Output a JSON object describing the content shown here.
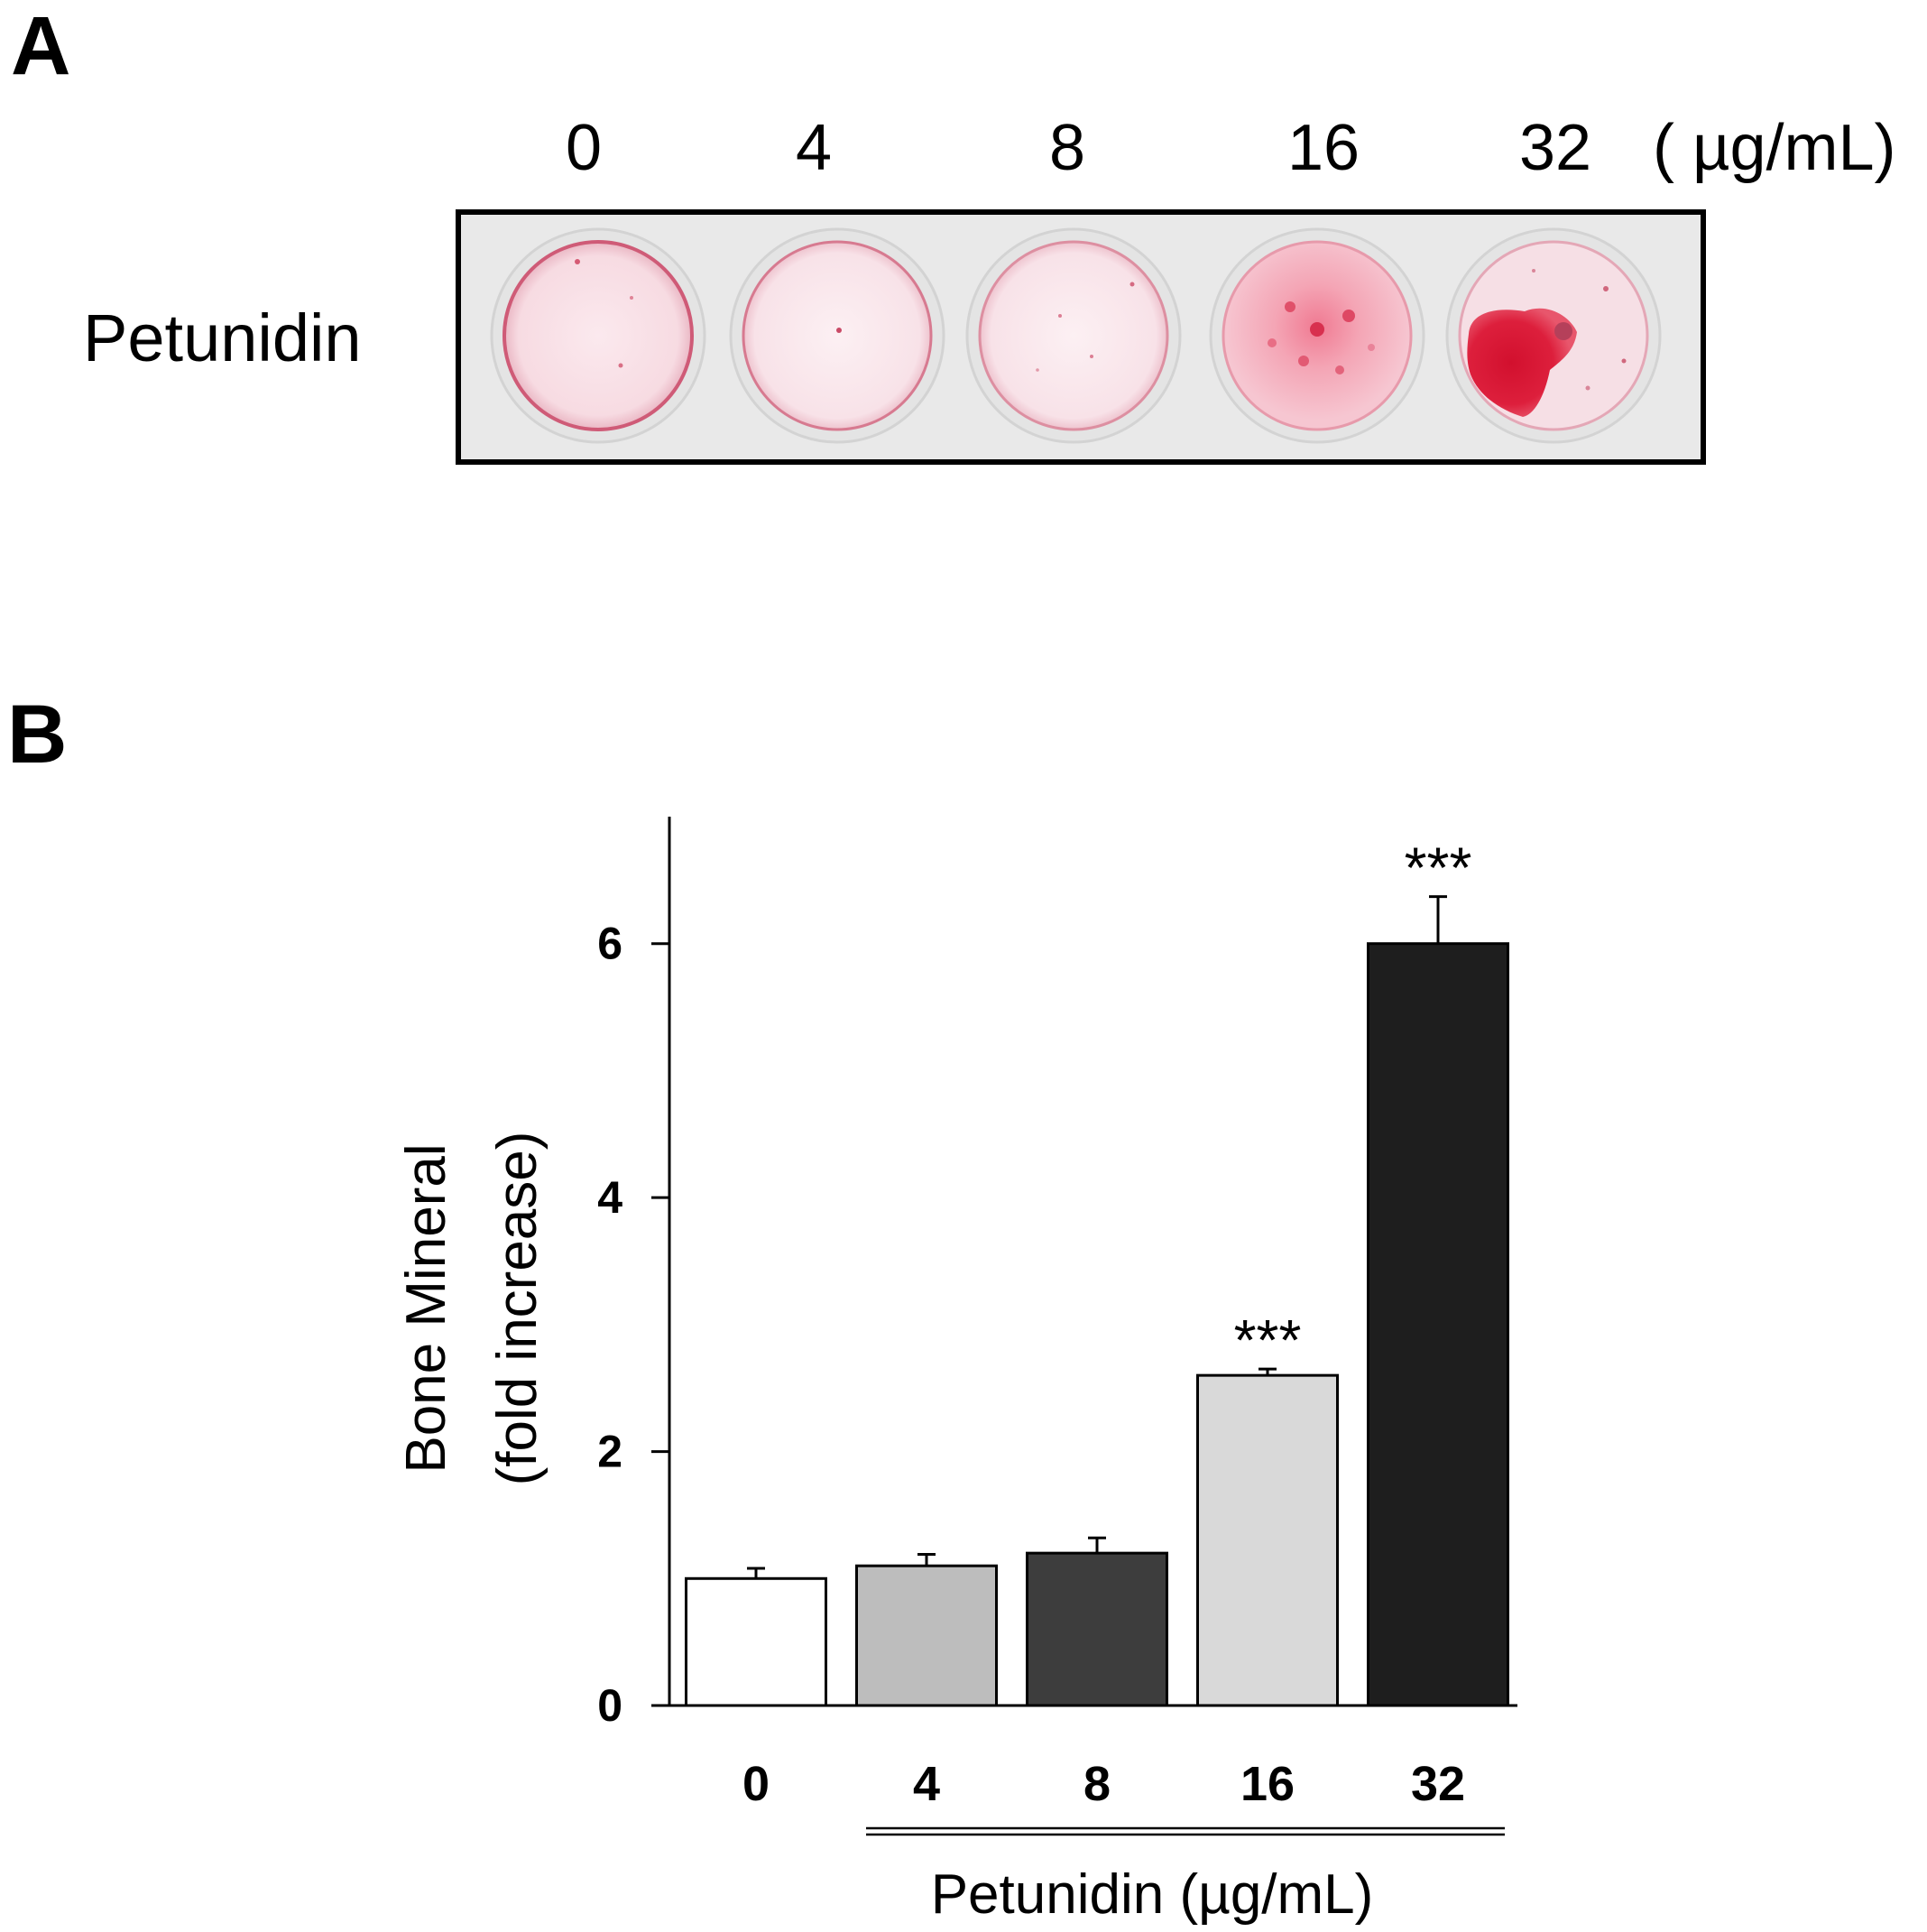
{
  "panel_a": {
    "letter": "A",
    "row_label": "Petunidin",
    "unit_label": "( µg/mL)",
    "wells": [
      {
        "concentration": "0",
        "stain": "faint-ring"
      },
      {
        "concentration": "4",
        "stain": "faint"
      },
      {
        "concentration": "8",
        "stain": "faint-speckle"
      },
      {
        "concentration": "16",
        "stain": "moderate-speckle"
      },
      {
        "concentration": "32",
        "stain": "strong-patch"
      }
    ]
  },
  "panel_b": {
    "letter": "B"
  },
  "chart_data": {
    "type": "bar",
    "title": "",
    "ylabel_line1": "Bone Mineral",
    "ylabel_line2": "(fold increase)",
    "xlabel": "Petunidin (µg/mL)",
    "categories": [
      "0",
      "4",
      "8",
      "16",
      "32"
    ],
    "values": [
      1.0,
      1.1,
      1.2,
      2.6,
      6.0
    ],
    "errors": [
      0.08,
      0.09,
      0.12,
      0.05,
      0.37
    ],
    "significance": [
      "",
      "",
      "",
      "***",
      "***"
    ],
    "bar_colors": [
      "#ffffff",
      "#bdbdbd",
      "#3d3d3d",
      "#d9d9d9",
      "#1e1e1e"
    ],
    "ylim": [
      0,
      7
    ],
    "yticks": [
      0,
      2,
      4,
      6
    ],
    "grid": false
  }
}
